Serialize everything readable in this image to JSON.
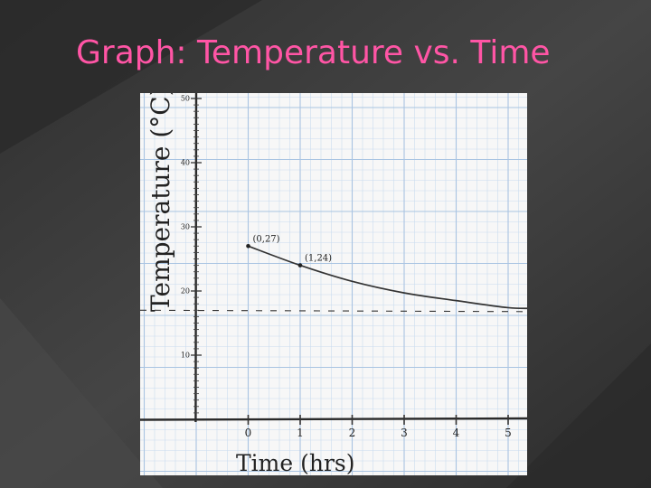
{
  "slide": {
    "title": "Graph: Temperature vs. Time",
    "title_color": "#ff55a5",
    "background_colors": [
      "#2f2f2f",
      "#555555"
    ]
  },
  "chart_data": {
    "type": "line",
    "title": "",
    "xlabel": "Time (hrs)",
    "ylabel": "Temperature (°C)",
    "xlim": [
      -1,
      5.5
    ],
    "ylim": [
      0,
      51
    ],
    "x_ticks": [
      0,
      1,
      2,
      3,
      4,
      5
    ],
    "y_ticks": [
      10,
      20,
      30,
      40,
      50
    ],
    "grid": true,
    "series": [
      {
        "x": [
          0,
          1,
          2,
          3,
          4,
          5,
          5.5
        ],
        "y": [
          27,
          24,
          21.5,
          19.7,
          18.5,
          17.4,
          17.3
        ],
        "style": "solid",
        "color": "#333333"
      }
    ],
    "reference_lines": [
      {
        "y": 17,
        "style": "dashed",
        "color": "#333333"
      }
    ],
    "annotations": [
      {
        "x": 0,
        "y": 27,
        "text": "(0,27)"
      },
      {
        "x": 1,
        "y": 24,
        "text": "(1,24)"
      }
    ]
  }
}
